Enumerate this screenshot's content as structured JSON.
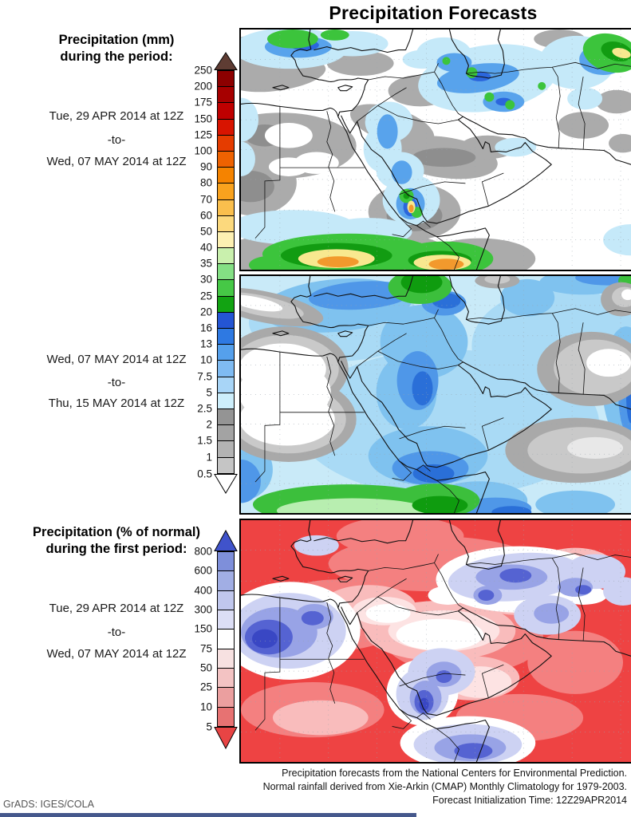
{
  "title": "Precipitation Forecasts",
  "panels": {
    "p1": {
      "heading1": "Precipitation (mm)",
      "heading2": "during the period:",
      "date_from": "Tue, 29 APR 2014 at 12Z",
      "to": "-to-",
      "date_to": "Wed, 07 MAY 2014 at 12Z"
    },
    "p2": {
      "date_from": "Wed, 07 MAY 2014 at 12Z",
      "to": "-to-",
      "date_to": "Thu, 15 MAY 2014 at 12Z"
    },
    "p3": {
      "heading1": "Precipitation (% of normal)",
      "heading2": "during the first period:",
      "date_from": "Tue, 29 APR 2014 at 12Z",
      "to": "-to-",
      "date_to": "Wed, 07 MAY 2014 at 12Z"
    }
  },
  "colorbars": {
    "mm": {
      "unit": "mm",
      "labels": [
        "250",
        "200",
        "175",
        "150",
        "125",
        "100",
        "90",
        "80",
        "70",
        "60",
        "50",
        "40",
        "35",
        "30",
        "25",
        "20",
        "16",
        "13",
        "10",
        "7.5",
        "5",
        "2.5",
        "2",
        "1.5",
        "1",
        "0.5"
      ],
      "segment_colors": [
        "#8c0000",
        "#a60000",
        "#bf0000",
        "#d81400",
        "#e53c00",
        "#ee6201",
        "#f58300",
        "#f9a21e",
        "#fabf4d",
        "#fcd97d",
        "#fdf0b2",
        "#c9f0ad",
        "#84e084",
        "#46c846",
        "#12a312",
        "#2455d4",
        "#2e79e2",
        "#55a0ec",
        "#7fbbf2",
        "#a8d5f7",
        "#cdeefb",
        "#949494",
        "#a3a3a3",
        "#b3b3b3",
        "#c5c5c5"
      ],
      "top_arrow": "#5e3c33",
      "bottom_arrow": "#ffffff"
    },
    "pct": {
      "unit": "% of normal",
      "labels": [
        "800",
        "600",
        "400",
        "300",
        "150",
        "75",
        "50",
        "25",
        "10",
        "5"
      ],
      "segment_colors": [
        "#7e8fda",
        "#a1aee4",
        "#c0c7ed",
        "#dcdef5",
        "#ffffff",
        "#f7e1e1",
        "#f3c3c3",
        "#eb9f9f",
        "#e77272"
      ],
      "top_arrow": "#4053cb",
      "bottom_arrow": "#e84444"
    }
  },
  "footer": {
    "line1": "Precipitation forecasts from the National Centers for Environmental Prediction.",
    "line2": "Normal rainfall derived from Xie-Arkin (CMAP) Monthly Climatology for 1979-2003.",
    "line3": "Forecast Initialization Time: 12Z29APR2014"
  },
  "credit": "GrADS: IGES/COLA",
  "chart_data": [
    {
      "type": "heatmap",
      "title": "Precipitation (mm), Tue 29 APR 2014 12Z to Wed 07 MAY 2014 12Z",
      "region": "Middle East / NE Africa / SW Asia (approx. 20E-70E, 5N-45N)",
      "units": "mm",
      "levels": [
        0.5,
        1,
        1.5,
        2,
        2.5,
        5,
        7.5,
        10,
        13,
        16,
        20,
        25,
        30,
        35,
        40,
        50,
        60,
        70,
        80,
        90,
        100,
        125,
        150,
        175,
        200,
        250
      ],
      "legend_position": "left",
      "grid": "dotted graticule",
      "notable_features": [
        "Heavy rain band 30-100 mm (green/yellow/orange) over Ethiopian Highlands and Horn of Africa",
        "Local 40-90 mm maximum (orange core) over Yemen highlands",
        "2.5-20 mm band with >35 mm green spots across northern Iran toward Afghanistan; 40-60 mm in far northeast corner",
        "2.5-16 mm along Black Sea coast of Turkey",
        "Light-blue 2.5-13 mm plume along Red Sea into western Saudi Arabia",
        "Mostly dry (<2.5 mm, gray/white) across Libya, Egypt and central Arabia"
      ]
    },
    {
      "type": "heatmap",
      "title": "Precipitation (mm), Wed 07 MAY 2014 12Z to Thu 15 MAY 2014 12Z",
      "region": "Middle East / NE Africa / SW Asia (approx. 20E-70E, 5N-45N)",
      "units": "mm",
      "levels": [
        0.5,
        1,
        1.5,
        2,
        2.5,
        5,
        7.5,
        10,
        13,
        16,
        20,
        25,
        30,
        35,
        40,
        50,
        60,
        70,
        80,
        90,
        100,
        125,
        150,
        175,
        200,
        250
      ],
      "legend_position": "left",
      "grid": "dotted graticule",
      "notable_features": [
        "Widespread 2.5-10 mm (light blue) across most of the domain",
        "10-16 mm core over the central Red Sea / western Saudi Arabia",
        "20-35 mm blob over eastern Turkey / Caucasus (green with dark-green core)",
        "25-50 mm band over Sudan / Ethiopia in the south",
        "Dry <1 mm (white with gray rim) over Egypt-Libya and over the Arabian Sea / southeast corner"
      ]
    },
    {
      "type": "heatmap",
      "title": "Precipitation (% of normal), Tue 29 APR 2014 12Z to Wed 07 MAY 2014 12Z",
      "region": "Middle East / NE Africa / SW Asia (approx. 20E-70E, 5N-45N)",
      "units": "% of normal",
      "levels": [
        5,
        10,
        25,
        50,
        75,
        150,
        300,
        400,
        600,
        800
      ],
      "legend_position": "left",
      "grid": "dotted graticule",
      "notable_features": [
        "Below 25% of normal (red) over most of North Africa, Arabia, Iraq and the Arabian Sea",
        "300-800% of normal (blue) over northwest Egypt / northeast Libya",
        "Above-normal patches (150-600%) over northern Iran and the Caspian fringe",
        "400-800% of normal over Yemen highlands and the Horn of Africa coast",
        "Near-normal white band across central Saudi Arabia"
      ]
    }
  ]
}
